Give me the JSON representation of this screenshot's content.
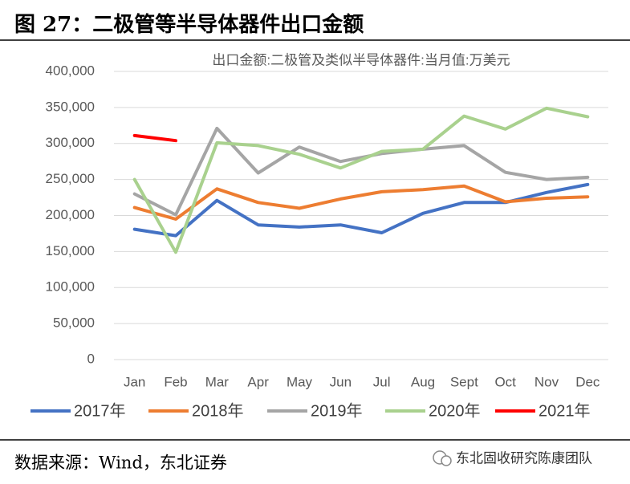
{
  "chart_data": {
    "type": "line",
    "title": "图 27：二极管等半导体器件出口金额",
    "subtitle": "出口金额:二极管及类似半导体器件:当月值:万美元",
    "categories": [
      "Jan",
      "Feb",
      "Mar",
      "Apr",
      "May",
      "Jun",
      "Jul",
      "Aug",
      "Sept",
      "Oct",
      "Nov",
      "Dec"
    ],
    "series": [
      {
        "name": "2017年",
        "color": "#4472c4",
        "values": [
          181000,
          172000,
          221000,
          187000,
          184000,
          187000,
          176000,
          203000,
          218000,
          218000,
          232000,
          243000
        ]
      },
      {
        "name": "2018年",
        "color": "#ed7d31",
        "values": [
          211000,
          195000,
          237000,
          218000,
          210000,
          223000,
          233000,
          236000,
          241000,
          219000,
          224000,
          226000
        ]
      },
      {
        "name": "2019年",
        "color": "#a5a5a5",
        "values": [
          230000,
          201000,
          321000,
          259000,
          295000,
          275000,
          286000,
          292000,
          297000,
          260000,
          250000,
          253000
        ]
      },
      {
        "name": "2020年",
        "color": "#a9d18e",
        "values": [
          250000,
          149000,
          301000,
          297000,
          285000,
          266000,
          289000,
          292000,
          338000,
          320000,
          349000,
          337000
        ]
      },
      {
        "name": "2021年",
        "color": "#ff0000",
        "values": [
          311000,
          304000,
          null,
          null,
          null,
          null,
          null,
          null,
          null,
          null,
          null,
          null
        ]
      }
    ],
    "ylim": [
      0,
      400000
    ],
    "yticks": [
      0,
      {
        "value": 50000,
        "label": "50,000"
      },
      {
        "value": 100000,
        "label": "100,000"
      },
      {
        "value": 150000,
        "label": "150,000"
      },
      {
        "value": 200000,
        "label": "200,000"
      },
      {
        "value": 250000,
        "label": "250,000"
      },
      {
        "value": 300000,
        "label": "300,000"
      },
      {
        "value": 350000,
        "label": "350,000"
      },
      {
        "value": 400000,
        "label": "400,000"
      }
    ],
    "grid": true,
    "legend": "bottom"
  },
  "footer": {
    "source": "数据来源：Wind，东北证券",
    "watermark": "东北固收研究陈康团队"
  }
}
